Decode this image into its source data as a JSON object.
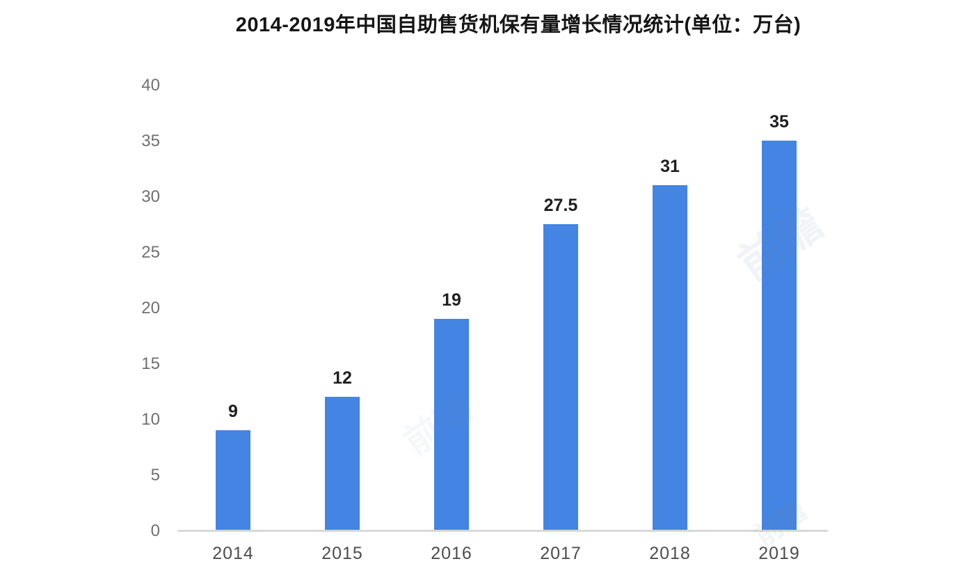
{
  "chart_data": {
    "type": "bar",
    "title": "2014-2019年中国自助售货机保有量增长情况统计(单位：万台)",
    "categories": [
      "2014",
      "2015",
      "2016",
      "2017",
      "2018",
      "2019"
    ],
    "values": [
      9,
      12,
      19,
      27.5,
      31,
      35
    ],
    "data_labels": [
      "9",
      "12",
      "19",
      "27.5",
      "31",
      "35"
    ],
    "xlabel": "",
    "ylabel": "",
    "ylim": [
      0,
      40
    ],
    "ytick_step": 5,
    "yticks": [
      "0",
      "5",
      "10",
      "15",
      "20",
      "25",
      "30",
      "35",
      "40"
    ],
    "grid": false,
    "legend_position": "none",
    "colors": {
      "bar": "#4484E2",
      "axis_line": "#D8D8D8",
      "ytick_text": "#6F6F6F",
      "xtick_text": "#4D4D4D",
      "data_label_text": "#1F1F1F",
      "title_text": "#151515",
      "background": "#FFFFFF"
    }
  },
  "watermarks": [
    {
      "text": "前瞻"
    },
    {
      "text": "前瞻"
    },
    {
      "text": "前瞻"
    }
  ]
}
